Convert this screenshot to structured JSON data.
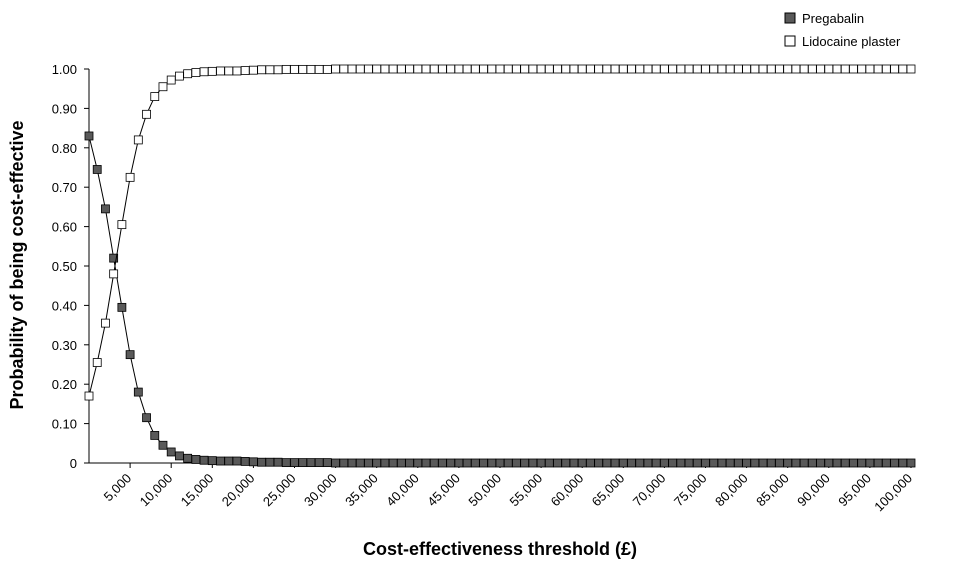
{
  "chart_data": {
    "type": "line",
    "xlabel": "Cost-effectiveness threshold (£)",
    "ylabel": "Probability of being cost-effective",
    "xlim": [
      0,
      100000
    ],
    "ylim": [
      0,
      1
    ],
    "grid": false,
    "legend_position": "top-right",
    "x_tick_values": [
      5000,
      10000,
      15000,
      20000,
      25000,
      30000,
      35000,
      40000,
      45000,
      50000,
      55000,
      60000,
      65000,
      70000,
      75000,
      80000,
      85000,
      90000,
      95000,
      100000
    ],
    "x_tick_labels": [
      "5,000",
      "10,000",
      "15,000",
      "20,000",
      "25,000",
      "30,000",
      "35,000",
      "40,000",
      "45,000",
      "50,000",
      "55,000",
      "60,000",
      "65,000",
      "70,000",
      "75,000",
      "80,000",
      "85,000",
      "90,000",
      "95,000",
      "100,000"
    ],
    "y_tick_values": [
      0,
      0.1,
      0.2,
      0.3,
      0.4,
      0.5,
      0.6,
      0.7,
      0.8,
      0.9,
      1.0
    ],
    "y_tick_labels": [
      "0",
      "0.10",
      "0.20",
      "0.30",
      "0.40",
      "0.50",
      "0.60",
      "0.70",
      "0.80",
      "0.90",
      "1.00"
    ],
    "x": [
      0,
      1000,
      2000,
      3000,
      4000,
      5000,
      6000,
      7000,
      8000,
      9000,
      10000,
      11000,
      12000,
      13000,
      14000,
      15000,
      16000,
      17000,
      18000,
      19000,
      20000,
      21000,
      22000,
      23000,
      24000,
      25000,
      26000,
      27000,
      28000,
      29000,
      30000,
      31000,
      32000,
      33000,
      34000,
      35000,
      36000,
      37000,
      38000,
      39000,
      40000,
      41000,
      42000,
      43000,
      44000,
      45000,
      46000,
      47000,
      48000,
      49000,
      50000,
      51000,
      52000,
      53000,
      54000,
      55000,
      56000,
      57000,
      58000,
      59000,
      60000,
      61000,
      62000,
      63000,
      64000,
      65000,
      66000,
      67000,
      68000,
      69000,
      70000,
      71000,
      72000,
      73000,
      74000,
      75000,
      76000,
      77000,
      78000,
      79000,
      80000,
      81000,
      82000,
      83000,
      84000,
      85000,
      86000,
      87000,
      88000,
      89000,
      90000,
      91000,
      92000,
      93000,
      94000,
      95000,
      96000,
      97000,
      98000,
      99000,
      100000
    ],
    "series": [
      {
        "name": "Pregabalin",
        "color": "#595959",
        "marker": "filled-square",
        "values": [
          0.83,
          0.745,
          0.645,
          0.52,
          0.395,
          0.275,
          0.18,
          0.115,
          0.07,
          0.045,
          0.028,
          0.018,
          0.012,
          0.009,
          0.007,
          0.006,
          0.005,
          0.005,
          0.005,
          0.004,
          0.003,
          0.002,
          0.002,
          0.002,
          0.001,
          0.001,
          0.001,
          0.001,
          0.001,
          0.001,
          0,
          0,
          0,
          0,
          0,
          0,
          0,
          0,
          0,
          0,
          0,
          0,
          0,
          0,
          0,
          0,
          0,
          0,
          0,
          0,
          0,
          0,
          0,
          0,
          0,
          0,
          0,
          0,
          0,
          0,
          0,
          0,
          0,
          0,
          0,
          0,
          0,
          0,
          0,
          0,
          0,
          0,
          0,
          0,
          0,
          0,
          0,
          0,
          0,
          0,
          0,
          0,
          0,
          0,
          0,
          0,
          0,
          0,
          0,
          0,
          0,
          0,
          0,
          0,
          0,
          0,
          0,
          0,
          0,
          0,
          0
        ]
      },
      {
        "name": "Lidocaine plaster",
        "color": "#ffffff",
        "marker": "open-square",
        "values": [
          0.17,
          0.255,
          0.355,
          0.48,
          0.605,
          0.725,
          0.82,
          0.885,
          0.93,
          0.955,
          0.972,
          0.982,
          0.988,
          0.991,
          0.993,
          0.994,
          0.995,
          0.995,
          0.995,
          0.996,
          0.997,
          0.998,
          0.998,
          0.998,
          0.999,
          0.999,
          0.999,
          0.999,
          0.999,
          0.999,
          1,
          1,
          1,
          1,
          1,
          1,
          1,
          1,
          1,
          1,
          1,
          1,
          1,
          1,
          1,
          1,
          1,
          1,
          1,
          1,
          1,
          1,
          1,
          1,
          1,
          1,
          1,
          1,
          1,
          1,
          1,
          1,
          1,
          1,
          1,
          1,
          1,
          1,
          1,
          1,
          1,
          1,
          1,
          1,
          1,
          1,
          1,
          1,
          1,
          1,
          1,
          1,
          1,
          1,
          1,
          1,
          1,
          1,
          1,
          1,
          1,
          1,
          1,
          1,
          1,
          1,
          1,
          1,
          1,
          1,
          1
        ]
      }
    ]
  }
}
